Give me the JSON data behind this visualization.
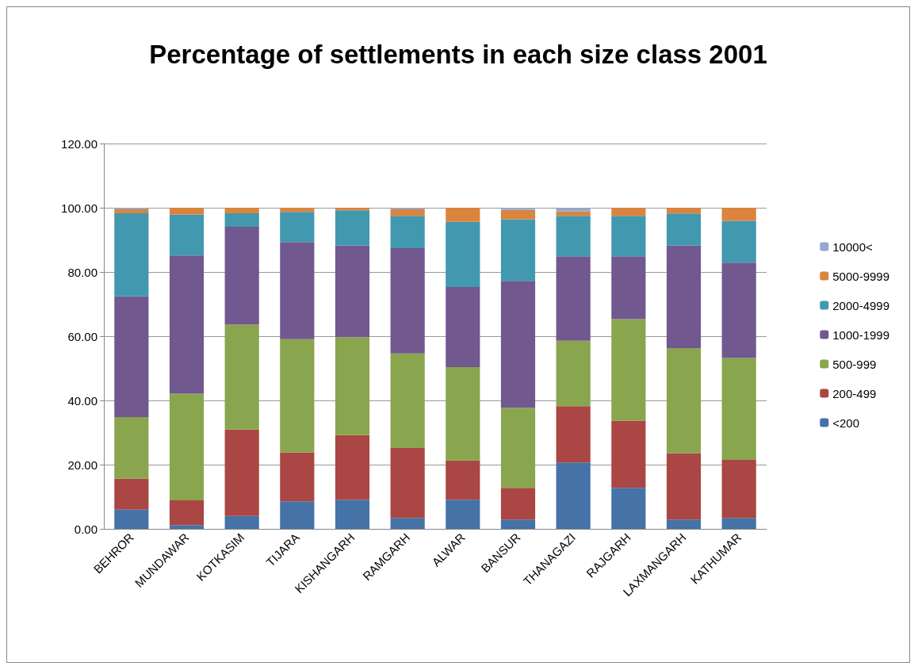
{
  "chart_data": {
    "type": "bar",
    "title": "Percentage of settlements in each size class 2001",
    "stacked": true,
    "categories": [
      "BEHROR",
      "MUNDAWAR",
      "KOTKASIM",
      "TIJARA",
      "KISHANGARH",
      "RAMGARH",
      "ALWAR",
      "BANSUR",
      "THANAGAZI",
      "RAJGARH",
      "LAXMANGARH",
      "KATHUMAR"
    ],
    "series": [
      {
        "name": "<200",
        "color": "#4572a7",
        "values": [
          6.0,
          1.2,
          4.0,
          8.6,
          9.1,
          3.4,
          9.1,
          2.9,
          20.7,
          12.8,
          2.9,
          3.4
        ]
      },
      {
        "name": "200-499",
        "color": "#aa4643",
        "values": [
          9.7,
          7.7,
          26.9,
          15.2,
          20.1,
          21.8,
          12.2,
          9.9,
          17.5,
          20.9,
          20.7,
          18.1
        ]
      },
      {
        "name": "500-999",
        "color": "#89a54e",
        "values": [
          19.1,
          33.2,
          32.7,
          35.3,
          30.5,
          29.4,
          29.1,
          24.9,
          20.4,
          31.6,
          32.7,
          31.7
        ]
      },
      {
        "name": "1000-1999",
        "color": "#71588f",
        "values": [
          37.6,
          43.0,
          30.5,
          30.2,
          28.5,
          32.8,
          24.9,
          39.5,
          26.3,
          19.6,
          31.9,
          29.7
        ]
      },
      {
        "name": "2000-4999",
        "color": "#4198af",
        "values": [
          25.9,
          12.8,
          4.2,
          9.4,
          11.0,
          10.1,
          20.3,
          19.2,
          12.6,
          12.6,
          10.0,
          13.0
        ]
      },
      {
        "name": "5000-9999",
        "color": "#db843d",
        "values": [
          1.2,
          2.1,
          1.7,
          1.3,
          0.8,
          2.0,
          4.4,
          2.9,
          1.4,
          2.5,
          1.8,
          4.1
        ]
      },
      {
        "name": "10000<",
        "color": "#93a9cf",
        "values": [
          0.5,
          0,
          0,
          0,
          0,
          0.5,
          0,
          0.7,
          1.1,
          0,
          0,
          0
        ]
      }
    ],
    "ylim": [
      0,
      120
    ],
    "yticks": [
      {
        "value": 0,
        "label": "0.00"
      },
      {
        "value": 20,
        "label": "20.00"
      },
      {
        "value": 40,
        "label": "40.00"
      },
      {
        "value": 60,
        "label": "60.00"
      },
      {
        "value": 80,
        "label": "80.00"
      },
      {
        "value": 100,
        "label": "100.00"
      },
      {
        "value": 120,
        "label": "120.00"
      }
    ],
    "grid": "y",
    "legend": "right"
  }
}
